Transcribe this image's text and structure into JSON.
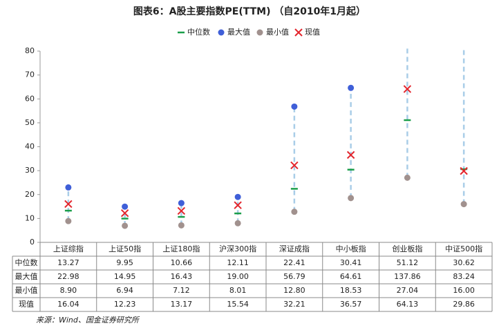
{
  "chart_data": {
    "type": "dot",
    "title": "图表6：A股主要指数PE(TTM) （自2010年1月起）",
    "categories": [
      "上证综指",
      "上证50指",
      "上证180指",
      "沪深300指",
      "深证成指",
      "中小板指",
      "创业板指",
      "中证500指"
    ],
    "series": [
      {
        "name": "中位数",
        "color": "#1a9e4a",
        "values": [
          13.27,
          9.95,
          10.66,
          12.11,
          22.41,
          30.41,
          51.12,
          30.62
        ],
        "value_labels": [
          "13.27",
          "9.95",
          "10.66",
          "12.11",
          "22.41",
          "30.41",
          "51.12",
          "30.62"
        ]
      },
      {
        "name": "最大值",
        "color": "#3f5fd8",
        "values": [
          22.98,
          14.95,
          16.43,
          19.0,
          56.79,
          64.61,
          137.86,
          83.24
        ],
        "value_labels": [
          "22.98",
          "14.95",
          "16.43",
          "19.00",
          "56.79",
          "64.61",
          "137.86",
          "83.24"
        ]
      },
      {
        "name": "最小值",
        "color": "#a1918e",
        "values": [
          8.9,
          6.94,
          7.12,
          8.01,
          12.8,
          18.53,
          27.04,
          16.0
        ],
        "value_labels": [
          "8.90",
          "6.94",
          "7.12",
          "8.01",
          "12.80",
          "18.53",
          "27.04",
          "16.00"
        ]
      },
      {
        "name": "现值",
        "color": "#e3262d",
        "values": [
          16.04,
          12.23,
          13.17,
          15.54,
          32.21,
          36.57,
          64.13,
          29.86
        ],
        "value_labels": [
          "16.04",
          "12.23",
          "13.17",
          "15.54",
          "32.21",
          "36.57",
          "64.13",
          "29.86"
        ]
      }
    ],
    "range_color": "#a9cde8",
    "ylim": [
      0,
      80
    ],
    "yticks": [
      0,
      10,
      20,
      30,
      40,
      50,
      60,
      70,
      80
    ],
    "source": "来源：Wind、国金证券研究所"
  }
}
